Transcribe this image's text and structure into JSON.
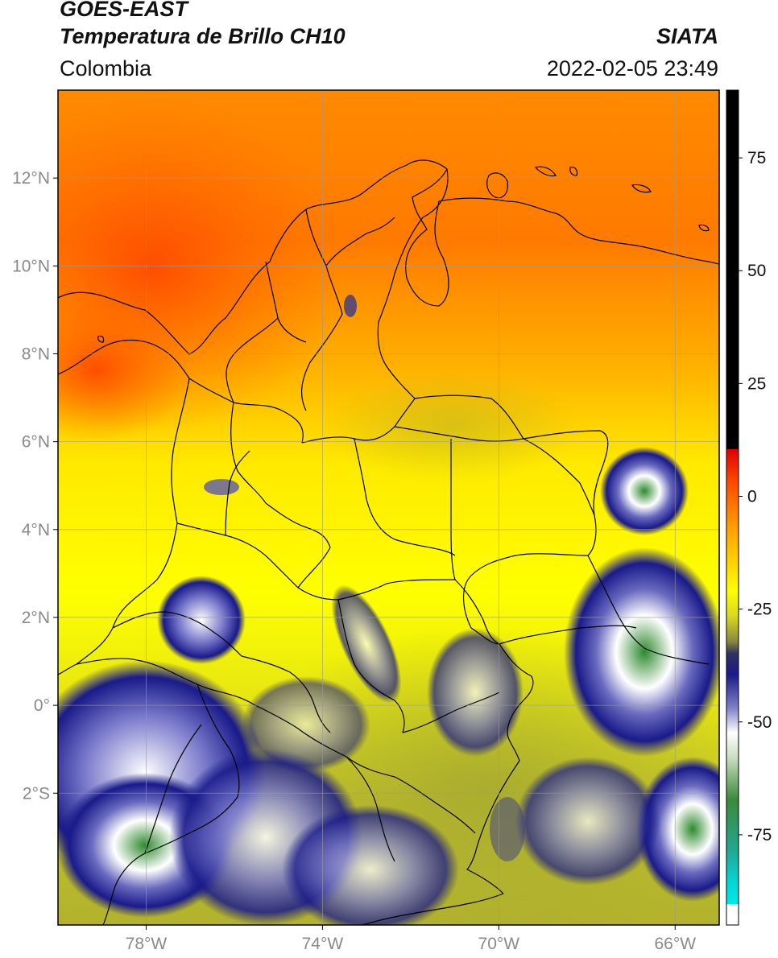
{
  "header": {
    "satellite": "GOES-EAST",
    "product": "Temperatura de Brillo CH10",
    "organization": "SIATA",
    "region": "Colombia",
    "datetime": "2022-02-05 23:49"
  },
  "map": {
    "lon_range": [
      -80,
      -65
    ],
    "lat_range": [
      -5,
      14
    ],
    "lat_ticks": [
      {
        "value": 12,
        "label": "12°N"
      },
      {
        "value": 10,
        "label": "10°N"
      },
      {
        "value": 8,
        "label": "8°N"
      },
      {
        "value": 6,
        "label": "6°N"
      },
      {
        "value": 4,
        "label": "4°N"
      },
      {
        "value": 2,
        "label": "2°N"
      },
      {
        "value": 0,
        "label": "0°"
      },
      {
        "value": -2,
        "label": "2°S"
      }
    ],
    "lon_ticks": [
      {
        "value": -78,
        "label": "78°W"
      },
      {
        "value": -74,
        "label": "74°W"
      },
      {
        "value": -70,
        "label": "70°W"
      },
      {
        "value": -66,
        "label": "66°W"
      }
    ],
    "gridlines": true,
    "colors": {
      "warm": "#ff5a00",
      "orange": "#ff9a00",
      "yellow": "#ffff00",
      "olive": "#b5b828",
      "navy": "#1a1a8a",
      "white": "#ffffff",
      "green": "#3a8a3a",
      "teal": "#20c8b0",
      "cyan": "#00e0e0",
      "border": "#000000",
      "grid": "#9a9a9a"
    }
  },
  "colorbar": {
    "range": [
      -95,
      90
    ],
    "tick_values": [
      75,
      50,
      25,
      0,
      -25,
      -50,
      -75
    ],
    "tick_labels": [
      "75",
      "50",
      "25",
      "0",
      "-25",
      "-50",
      "-75"
    ]
  }
}
